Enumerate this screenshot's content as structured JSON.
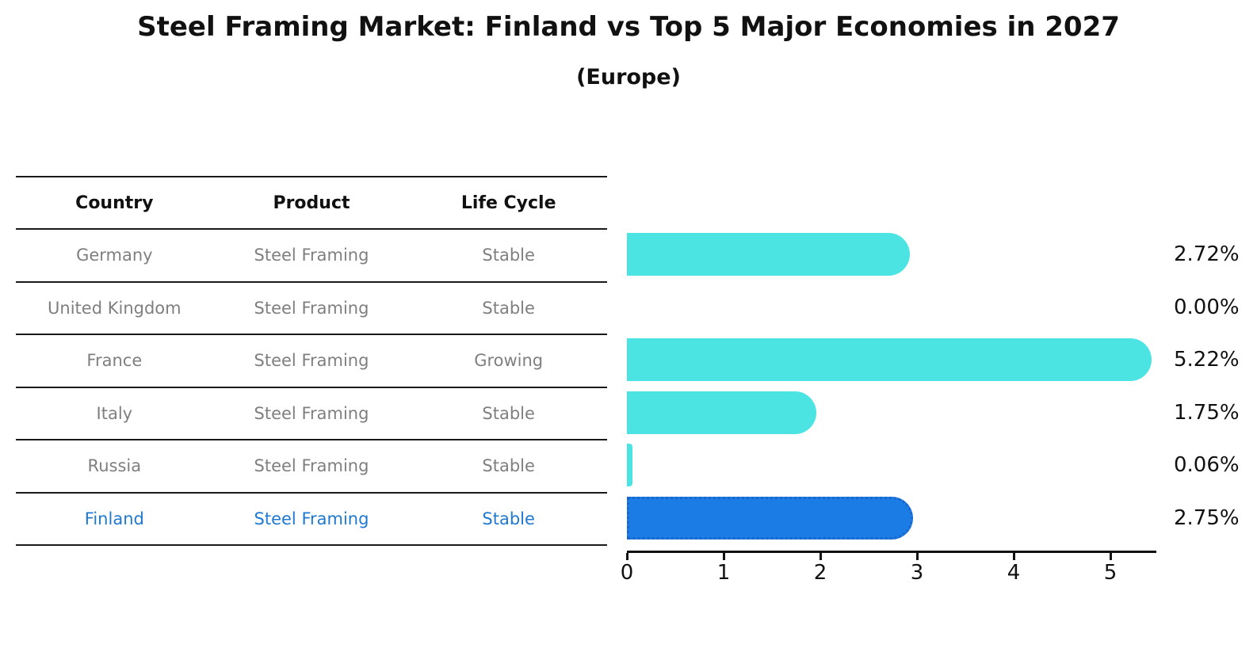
{
  "title": "Steel Framing Market: Finland vs Top 5 Major Economies in 2027",
  "subtitle": "(Europe)",
  "table": {
    "headers": [
      "Country",
      "Product",
      "Life Cycle"
    ],
    "rows": [
      {
        "country": "Germany",
        "product": "Steel Framing",
        "life_cycle": "Stable",
        "highlight": false
      },
      {
        "country": "United Kingdom",
        "product": "Steel Framing",
        "life_cycle": "Stable",
        "highlight": false
      },
      {
        "country": "France",
        "product": "Steel Framing",
        "life_cycle": "Growing",
        "highlight": false
      },
      {
        "country": "Italy",
        "product": "Steel Framing",
        "life_cycle": "Stable",
        "highlight": false
      },
      {
        "country": "Russia",
        "product": "Steel Framing",
        "life_cycle": "Stable",
        "highlight": false
      },
      {
        "country": "Finland",
        "product": "Steel Framing",
        "life_cycle": "Stable",
        "highlight": true
      }
    ]
  },
  "chart_data": {
    "type": "bar",
    "orientation": "horizontal",
    "title": "Steel Framing Market: Finland vs Top 5 Major Economies in 2027",
    "subtitle": "(Europe)",
    "categories": [
      "Germany",
      "United Kingdom",
      "France",
      "Italy",
      "Russia",
      "Finland"
    ],
    "values": [
      2.72,
      0.0,
      5.22,
      1.75,
      0.06,
      2.75
    ],
    "value_labels": [
      "2.72%",
      "0.00%",
      "5.22%",
      "1.75%",
      "0.06%",
      "2.75%"
    ],
    "unit": "%",
    "x_ticks": [
      0,
      1,
      2,
      3,
      4,
      5
    ],
    "xlim": [
      0,
      5.5
    ],
    "grid": false,
    "legend": null,
    "highlight_index": 5,
    "bar_color": "#4be4e2",
    "highlight_bar_color": "#1c7ce6",
    "highlight_border_color": "#1a66cc"
  },
  "colors": {
    "text": "#111111",
    "muted_text": "#7f7f7f",
    "highlight_text": "#1f78d1",
    "background": "#ffffff",
    "table_line": "#1a1a1a"
  }
}
